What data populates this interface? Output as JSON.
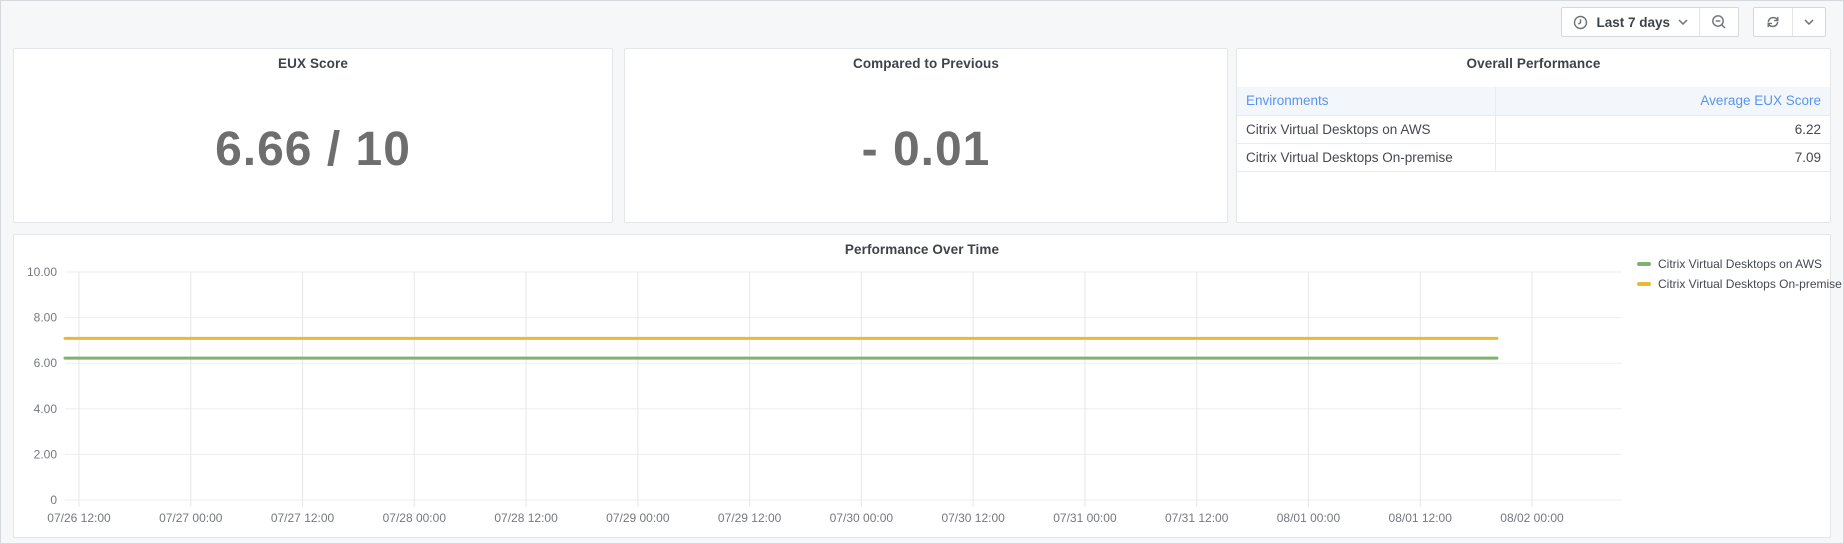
{
  "toolbar": {
    "time_range_label": "Last 7 days"
  },
  "panels": {
    "eux_score": {
      "title": "EUX Score",
      "value": "6.66 / 10"
    },
    "compared_to_previous": {
      "title": "Compared to Previous",
      "value": "- 0.01"
    },
    "overall_performance": {
      "title": "Overall Performance",
      "table": {
        "columns": [
          "Environments",
          "Average EUX Score"
        ],
        "rows": [
          {
            "environment": "Citrix Virtual Desktops on AWS",
            "score": "6.22"
          },
          {
            "environment": "Citrix Virtual Desktops On-premise",
            "score": "7.09"
          }
        ]
      }
    }
  },
  "chart_data": {
    "type": "line",
    "title": "Performance Over Time",
    "xlabel": "",
    "ylabel": "",
    "ylim": [
      0,
      10
    ],
    "grid": true,
    "legend_position": "right-top",
    "y_tick_values": [
      0,
      2,
      4,
      6,
      8,
      10
    ],
    "y_tick_labels": [
      "0",
      "2.00",
      "4.00",
      "6.00",
      "8.00",
      "10.00"
    ],
    "x_tick_labels": [
      "07/26 12:00",
      "07/27 00:00",
      "07/27 12:00",
      "07/28 00:00",
      "07/28 12:00",
      "07/29 00:00",
      "07/29 12:00",
      "07/30 00:00",
      "07/30 12:00",
      "07/31 00:00",
      "07/31 12:00",
      "08/01 00:00",
      "08/01 12:00",
      "08/02 00:00"
    ],
    "series": [
      {
        "name": "Citrix Virtual Desktops on AWS",
        "color": "#7eb26d",
        "value": 6.22
      },
      {
        "name": "Citrix Virtual Desktops On-premise",
        "color": "#eab839",
        "value": 7.09
      }
    ]
  }
}
